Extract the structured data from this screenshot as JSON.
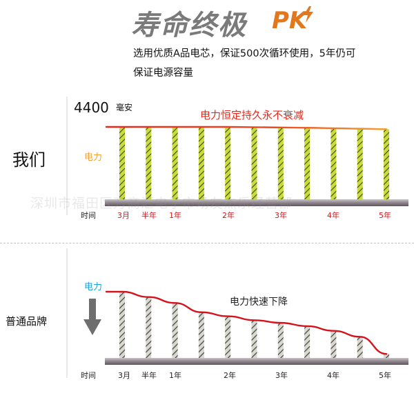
{
  "header": {
    "title": "寿命终极",
    "title_suffix": "PK",
    "subtitle_line1": "选用优质A品电芯，保证500次循环使用，5年仍可",
    "subtitle_line2": "保证电源容量"
  },
  "watermark": "深圳市福田区万商汇电子市场友杰乐经营部",
  "colors": {
    "ours_bar": "#c8dc3c",
    "ours_line_start": "#e8271a",
    "ours_line_end": "#f2a035",
    "generic_bar": "#7a7a72",
    "generic_line": "#d4121c",
    "baseline": "#9a9098",
    "axis_label_red": "#d0171e",
    "arrow": "#6e6e6e"
  },
  "chart_data": [
    {
      "type": "bar",
      "series_group": "我们",
      "side_label": "我们",
      "capacity_value": "4400",
      "capacity_unit": "毫安",
      "ylabel": "电力",
      "annotation": "电力恒定持久永不衰减",
      "xlabel": "时间",
      "ticks": [
        "3月",
        "半年",
        "1年",
        "2年",
        "3年",
        "4年",
        "5年"
      ],
      "values": [
        100,
        100,
        100,
        100,
        100,
        99.6,
        99.2,
        98.8,
        98.2,
        97.5,
        96.8
      ],
      "ylim": [
        0,
        100
      ]
    },
    {
      "type": "bar",
      "series_group": "普通品牌",
      "side_label": "普通品牌",
      "ylabel": "电力",
      "annotation": "电力快速下降",
      "xlabel": "时间",
      "ticks": [
        "3月",
        "半年",
        "1年",
        "2年",
        "3年",
        "4年",
        "5年"
      ],
      "values": [
        100,
        92,
        83,
        69,
        63,
        57,
        53,
        48,
        41,
        32,
        6
      ],
      "ylim": [
        0,
        100
      ]
    }
  ]
}
